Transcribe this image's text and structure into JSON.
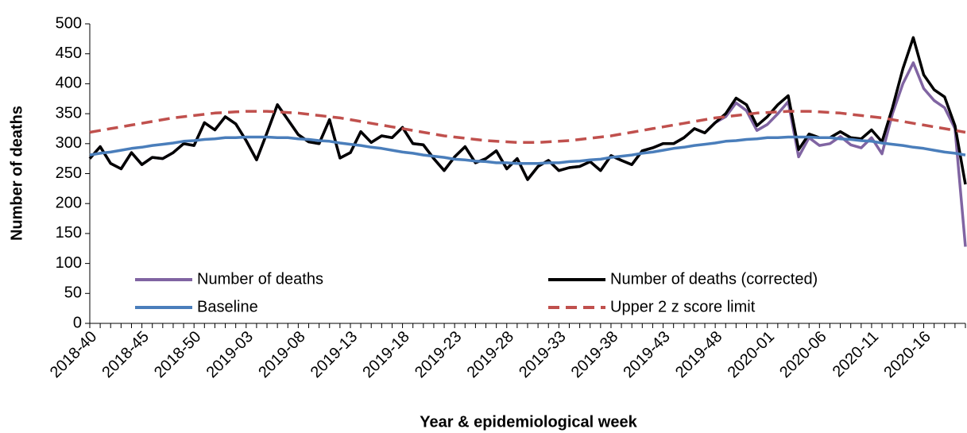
{
  "chart_data": {
    "type": "line",
    "x_label": "Year & epidemiological week",
    "y_label": "Number of deaths",
    "categories": [
      "2018-40",
      null,
      null,
      null,
      null,
      "2018-45",
      null,
      null,
      null,
      null,
      "2018-50",
      null,
      null,
      null,
      null,
      "2019-03",
      null,
      null,
      null,
      null,
      "2019-08",
      null,
      null,
      null,
      null,
      "2019-13",
      null,
      null,
      null,
      null,
      "2019-18",
      null,
      null,
      null,
      null,
      "2019-23",
      null,
      null,
      null,
      null,
      "2019-28",
      null,
      null,
      null,
      null,
      "2019-33",
      null,
      null,
      null,
      null,
      "2019-38",
      null,
      null,
      null,
      null,
      "2019-43",
      null,
      null,
      null,
      null,
      "2019-48",
      null,
      null,
      null,
      null,
      "2020-01",
      null,
      null,
      null,
      null,
      "2020-06",
      null,
      null,
      null,
      null,
      "2020-11",
      null,
      null,
      null,
      null,
      "2020-16",
      null,
      null,
      null,
      null
    ],
    "series": [
      {
        "name": "Number of deaths",
        "color": "#8064a2",
        "dash": false,
        "values": [
          275,
          295,
          267,
          258,
          285,
          265,
          277,
          275,
          285,
          300,
          297,
          335,
          323,
          345,
          333,
          305,
          273,
          318,
          365,
          340,
          315,
          303,
          300,
          340,
          276,
          285,
          320,
          302,
          313,
          310,
          327,
          300,
          298,
          275,
          255,
          278,
          295,
          268,
          275,
          288,
          258,
          275,
          240,
          262,
          272,
          255,
          260,
          262,
          270,
          255,
          280,
          272,
          265,
          288,
          293,
          300,
          300,
          310,
          325,
          318,
          335,
          345,
          368,
          355,
          322,
          332,
          350,
          370,
          278,
          310,
          297,
          300,
          312,
          298,
          293,
          310,
          283,
          350,
          400,
          435,
          392,
          372,
          360,
          325,
          128
        ]
      },
      {
        "name": "Number of deaths (corrected)",
        "color": "#000000",
        "dash": false,
        "values": [
          275,
          295,
          267,
          258,
          285,
          265,
          277,
          275,
          285,
          300,
          297,
          335,
          323,
          345,
          333,
          305,
          273,
          318,
          365,
          340,
          315,
          303,
          300,
          340,
          276,
          285,
          320,
          302,
          313,
          310,
          327,
          300,
          298,
          275,
          255,
          278,
          295,
          268,
          275,
          288,
          258,
          275,
          240,
          262,
          272,
          255,
          260,
          262,
          270,
          255,
          280,
          272,
          265,
          288,
          293,
          300,
          300,
          310,
          325,
          318,
          335,
          350,
          376,
          365,
          330,
          345,
          365,
          380,
          290,
          316,
          310,
          310,
          320,
          310,
          308,
          323,
          303,
          360,
          425,
          477,
          415,
          390,
          378,
          330,
          232
        ]
      },
      {
        "name": "Baseline",
        "color": "#4a7ebb",
        "dash": false,
        "values": [
          281,
          284,
          286,
          289,
          292,
          294,
          297,
          299,
          301,
          304,
          305,
          307,
          308,
          310,
          310,
          311,
          311,
          311,
          310,
          310,
          308,
          307,
          305,
          304,
          301,
          299,
          297,
          294,
          292,
          289,
          286,
          284,
          281,
          279,
          277,
          274,
          273,
          271,
          270,
          268,
          268,
          267,
          267,
          267,
          268,
          268,
          270,
          271,
          273,
          274,
          277,
          279,
          281,
          284,
          286,
          289,
          292,
          294,
          297,
          299,
          301,
          304,
          305,
          307,
          308,
          310,
          310,
          311,
          311,
          311,
          310,
          310,
          308,
          307,
          305,
          304,
          301,
          299,
          297,
          294,
          292,
          289,
          286,
          284,
          281
        ]
      },
      {
        "name": "Upper 2 z score limit",
        "color": "#c0504d",
        "dash": true,
        "values": [
          319,
          322,
          325,
          328,
          331,
          334,
          337,
          340,
          343,
          345,
          347,
          349,
          351,
          352,
          353,
          354,
          354,
          354,
          353,
          352,
          351,
          349,
          347,
          345,
          343,
          340,
          337,
          334,
          331,
          328,
          325,
          322,
          319,
          316,
          313,
          311,
          309,
          307,
          305,
          304,
          303,
          302,
          302,
          302,
          303,
          304,
          305,
          307,
          309,
          311,
          313,
          316,
          319,
          322,
          325,
          328,
          331,
          334,
          337,
          340,
          343,
          345,
          347,
          349,
          351,
          352,
          353,
          354,
          354,
          354,
          353,
          352,
          351,
          349,
          347,
          345,
          343,
          340,
          337,
          334,
          331,
          328,
          325,
          322,
          319
        ]
      }
    ],
    "ylim": [
      0,
      500
    ],
    "yticks": [
      0,
      50,
      100,
      150,
      200,
      250,
      300,
      350,
      400,
      450,
      500
    ],
    "grid": false
  }
}
